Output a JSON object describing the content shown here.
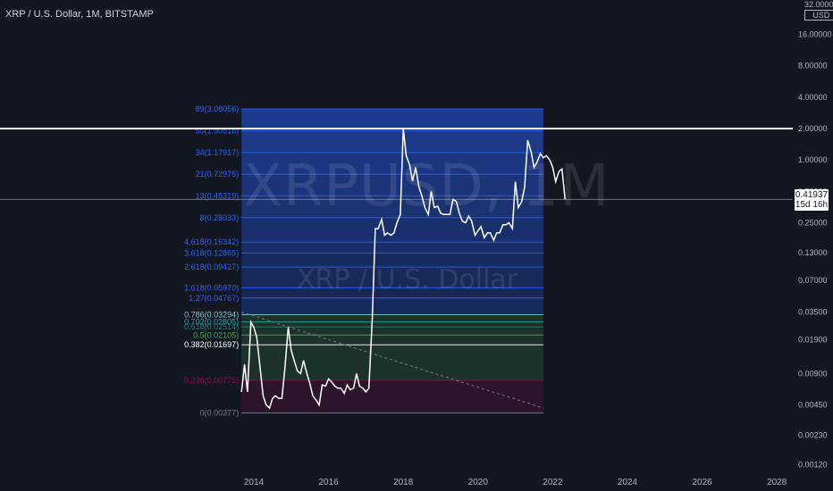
{
  "header": {
    "title": "XRP / U.S. Dollar, 1M, BITSTAMP"
  },
  "watermark": {
    "symbol": "XRPUSD, 1M",
    "name": "XRP / U.S. Dollar"
  },
  "price_scale": {
    "top_label": "32.00000",
    "currency": "USD"
  },
  "last_price": {
    "value": "0.41937",
    "countdown": "15d 16h"
  },
  "colors": {
    "background": "#131722",
    "line": "#ffffff",
    "fib_blue": "#2962ff",
    "fib_green": "#4caf50",
    "fib_red": "#880e4f",
    "text": "#b2b5be"
  },
  "chart_data": {
    "type": "line",
    "scale": "log",
    "ylim": [
      0.0012,
      32
    ],
    "yticks": [
      "16.00000",
      "8.00000",
      "4.00000",
      "2.00000",
      "1.00000",
      "0.50000",
      "0.25000",
      "0.13000",
      "0.07000",
      "0.03500",
      "0.01900",
      "0.00900",
      "0.00450",
      "0.00230",
      "0.00120"
    ],
    "xticks": [
      "2014",
      "2016",
      "2018",
      "2020",
      "2022",
      "2024",
      "2026",
      "2028"
    ],
    "series": [
      {
        "x": [
          2013.67,
          2013.75,
          2013.83,
          2013.92,
          2014.0,
          2014.08,
          2014.17,
          2014.25,
          2014.33,
          2014.42,
          2014.5,
          2014.58,
          2014.67,
          2014.75,
          2014.83,
          2014.92,
          2015.0,
          2015.08,
          2015.17,
          2015.25,
          2015.33,
          2015.42,
          2015.5,
          2015.58,
          2015.67,
          2015.75,
          2015.83,
          2015.92,
          2016.0,
          2016.08,
          2016.17,
          2016.25,
          2016.33,
          2016.42,
          2016.5,
          2016.58,
          2016.67,
          2016.75,
          2016.83,
          2016.92,
          2017.0,
          2017.08,
          2017.17,
          2017.25,
          2017.33,
          2017.42,
          2017.5,
          2017.58,
          2017.67,
          2017.75,
          2017.83,
          2017.92,
          2018.0,
          2018.08,
          2018.17,
          2018.25,
          2018.33,
          2018.42,
          2018.5,
          2018.58,
          2018.67,
          2018.75,
          2018.83,
          2018.92,
          2019.0,
          2019.08,
          2019.17,
          2019.25,
          2019.33,
          2019.42,
          2019.5,
          2019.58,
          2019.67,
          2019.75,
          2019.83,
          2019.92,
          2020.0,
          2020.08,
          2020.17,
          2020.25,
          2020.33,
          2020.42,
          2020.5,
          2020.58,
          2020.67,
          2020.75,
          2020.83,
          2020.92,
          2021.0,
          2021.08,
          2021.17,
          2021.25,
          2021.33,
          2021.42,
          2021.5,
          2021.58,
          2021.67,
          2021.75,
          2021.83,
          2021.92,
          2022.0,
          2022.08,
          2022.17,
          2022.25,
          2022.33
        ],
        "values": [
          0.006,
          0.011,
          0.006,
          0.028,
          0.025,
          0.02,
          0.01,
          0.0055,
          0.0045,
          0.0042,
          0.0052,
          0.0055,
          0.0052,
          0.0052,
          0.01,
          0.025,
          0.015,
          0.012,
          0.0095,
          0.009,
          0.012,
          0.009,
          0.0072,
          0.0055,
          0.005,
          0.0045,
          0.007,
          0.0068,
          0.008,
          0.0075,
          0.0068,
          0.0065,
          0.0065,
          0.0058,
          0.007,
          0.0063,
          0.0065,
          0.009,
          0.0068,
          0.0065,
          0.006,
          0.0065,
          0.03,
          0.22,
          0.22,
          0.27,
          0.19,
          0.2,
          0.19,
          0.2,
          0.25,
          0.3,
          2.0,
          1.1,
          0.9,
          0.63,
          0.85,
          0.55,
          0.45,
          0.35,
          0.3,
          0.5,
          0.35,
          0.36,
          0.31,
          0.3,
          0.3,
          0.3,
          0.42,
          0.4,
          0.31,
          0.26,
          0.25,
          0.29,
          0.26,
          0.19,
          0.21,
          0.23,
          0.18,
          0.2,
          0.2,
          0.17,
          0.2,
          0.2,
          0.24,
          0.24,
          0.25,
          0.22,
          0.62,
          0.35,
          0.4,
          0.55,
          1.55,
          1.2,
          0.85,
          0.95,
          1.15,
          1.05,
          1.1,
          1.0,
          0.85,
          0.62,
          0.78,
          0.82,
          0.42
        ]
      }
    ],
    "fib_levels": [
      {
        "label": "0(0.00377)",
        "value": 0.00377,
        "color": "#787b86"
      },
      {
        "label": "0.236(0.00775)",
        "value": 0.00775,
        "color": "#880e4f"
      },
      {
        "label": "0.382(0.01697)",
        "value": 0.01697,
        "color": "#ffffff"
      },
      {
        "label": "0.5(0.02105)",
        "value": 0.02105,
        "color": "#4caf50"
      },
      {
        "label": "0.618(0.02514)",
        "value": 0.02514,
        "color": "#2e7d6f"
      },
      {
        "label": "0.702(0.02805)",
        "value": 0.02805,
        "color": "#26a69a"
      },
      {
        "label": "0.786(0.03294)",
        "value": 0.03294,
        "color": "#80cbc4"
      },
      {
        "label": "1.27(0.04767)",
        "value": 0.04767,
        "color": "#2962ff"
      },
      {
        "label": "1.618(0.05970)",
        "value": 0.0597,
        "color": "#2962ff"
      },
      {
        "label": "2.618(0.09427)",
        "value": 0.09427,
        "color": "#2962ff"
      },
      {
        "label": "3.618(0.12865)",
        "value": 0.12865,
        "color": "#2962ff"
      },
      {
        "label": "4.618(0.16342)",
        "value": 0.16342,
        "color": "#2962ff"
      },
      {
        "label": "8(0.28033)",
        "value": 0.28033,
        "color": "#2962ff"
      },
      {
        "label": "13(0.45319)",
        "value": 0.45319,
        "color": "#2962ff"
      },
      {
        "label": "21(0.72975)",
        "value": 0.72975,
        "color": "#2962ff"
      },
      {
        "label": "34(1.17917)",
        "value": 1.17917,
        "color": "#2962ff"
      },
      {
        "label": "55(1.90516)",
        "value": 1.90516,
        "color": "#2962ff"
      },
      {
        "label": "89(3.08056)",
        "value": 3.08056,
        "color": "#2962ff"
      }
    ],
    "fib_range": {
      "x_start": 2013.67,
      "x_end": 2021.75
    },
    "horizontal_line": 2.0,
    "last_value_line": 0.41937,
    "trend_line": {
      "x": [
        2013.67,
        2021.75
      ],
      "y": [
        0.035,
        0.0042
      ]
    }
  }
}
